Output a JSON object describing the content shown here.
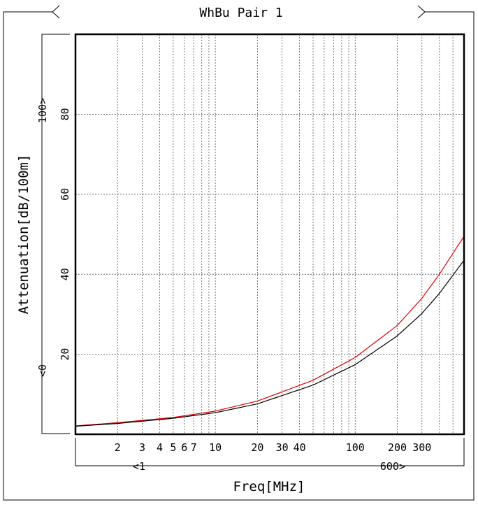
{
  "chart_data": {
    "type": "line",
    "title": "WhBu Pair 1",
    "xlabel": "Freq[MHz]",
    "ylabel": "Attenuation[dB/100m]",
    "x_scale": "log",
    "xlim": [
      1,
      600
    ],
    "ylim": [
      0,
      100
    ],
    "x_tick_labels": [
      "2",
      "3",
      "4",
      "5",
      "6",
      "7",
      "10",
      "20",
      "30",
      "40",
      "100",
      "200",
      "300"
    ],
    "y_tick_labels": [
      "20",
      "40",
      "60",
      "80"
    ],
    "x_range_labels": {
      "min": "<1",
      "max": "600>"
    },
    "y_range_labels": {
      "min": "<0",
      "max": "100>"
    },
    "grid": true,
    "series": [
      {
        "color": "#e00000",
        "x": [
          1,
          2,
          5,
          10,
          20,
          50,
          100,
          200,
          300,
          400,
          600
        ],
        "y": [
          2.1,
          2.9,
          4.2,
          5.8,
          8.3,
          13.5,
          19.2,
          27.2,
          34.0,
          40.0,
          49.5
        ]
      },
      {
        "color": "#000000",
        "x": [
          1,
          2,
          5,
          10,
          20,
          50,
          100,
          200,
          300,
          400,
          600
        ],
        "y": [
          2.0,
          2.7,
          4.0,
          5.4,
          7.6,
          12.3,
          17.4,
          24.6,
          30.2,
          35.2,
          43.5
        ]
      }
    ]
  }
}
